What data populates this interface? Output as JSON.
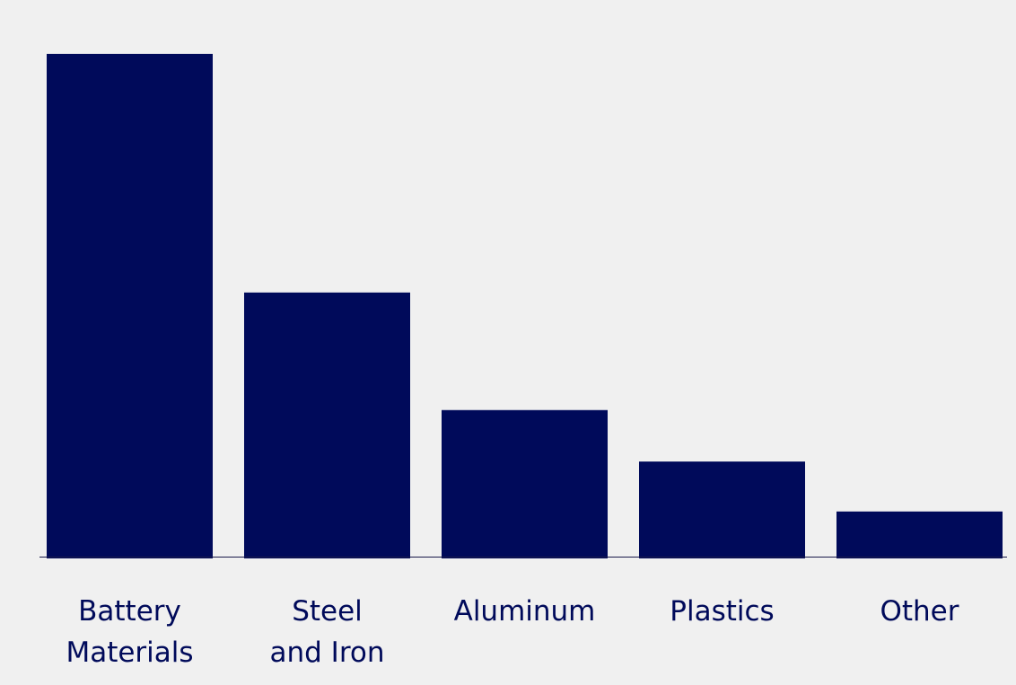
{
  "chart_data": {
    "type": "bar",
    "categories": [
      "Battery\nMaterials",
      "Steel\nand Iron",
      "Aluminum",
      "Plastics",
      "Other"
    ],
    "values": [
      100,
      52.7,
      29.4,
      19.2,
      9.3
    ],
    "color": "#000a5a"
  }
}
